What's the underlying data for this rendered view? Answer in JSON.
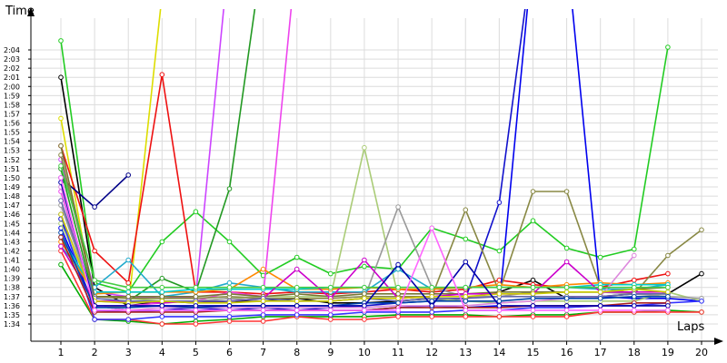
{
  "chart_data": {
    "type": "line",
    "xlabel": "Laps",
    "ylabel": "Time",
    "x": [
      1,
      2,
      3,
      4,
      5,
      6,
      7,
      8,
      9,
      10,
      11,
      12,
      13,
      14,
      15,
      16,
      17,
      18,
      19,
      20
    ],
    "xlim": [
      1,
      20
    ],
    "ylim": [
      93,
      125
    ],
    "yticks": [
      "1:34",
      "1:35",
      "1:36",
      "1:37",
      "1:38",
      "1:39",
      "1:40",
      "1:41",
      "1:42",
      "1:43",
      "1:44",
      "1:45",
      "1:46",
      "1:47",
      "1:48",
      "1:49",
      "1:50",
      "1:51",
      "1:52",
      "1:53",
      "1:54",
      "1:55",
      "1:56",
      "1:57",
      "1:58",
      "1:59",
      "2:00",
      "2:01",
      "2:02",
      "2:03",
      "2:04"
    ],
    "ytick_values": [
      94,
      95,
      96,
      97,
      98,
      99,
      100,
      101,
      102,
      103,
      104,
      105,
      106,
      107,
      108,
      109,
      110,
      111,
      112,
      113,
      114,
      115,
      116,
      117,
      118,
      119,
      120,
      121,
      122,
      123,
      124
    ],
    "grid": true,
    "series": [
      {
        "color": "#22cc22",
        "values": [
          125,
          98.5,
          97.5,
          103,
          106.3,
          103,
          99.3,
          101.3,
          99.5,
          100.3,
          100,
          104.5,
          103.3,
          102,
          105.3,
          102.3,
          101.3,
          102.2,
          124.3,
          null
        ]
      },
      {
        "color": "#000000",
        "values": [
          121,
          98,
          96,
          96.5,
          96.3,
          96.5,
          96.5,
          96.8,
          96.3,
          96.3,
          96.5,
          96.8,
          96.8,
          97.5,
          98.8,
          96.8,
          97,
          97.3,
          97.3,
          99.5
        ]
      },
      {
        "color": "#dddd00",
        "values": [
          116.5,
          96,
          95.8,
          130,
          null,
          null,
          null,
          null,
          null,
          null,
          null,
          null,
          null,
          null,
          null,
          null,
          null,
          null,
          null,
          null
        ]
      },
      {
        "color": "#ee1111",
        "values": [
          113.5,
          102,
          98.5,
          121.3,
          97.5,
          97.5,
          97.3,
          97.5,
          97.3,
          97.5,
          97.8,
          97.5,
          97.8,
          98.8,
          98.3,
          98,
          98,
          98.8,
          99.5,
          null
        ]
      },
      {
        "color": "#000088",
        "values": [
          110,
          106.8,
          110.3,
          null,
          null,
          null,
          null,
          null,
          null,
          null,
          null,
          null,
          null,
          null,
          null,
          null,
          null,
          null,
          null,
          null
        ]
      },
      {
        "color": "#cc44ff",
        "values": [
          112,
          97.5,
          97,
          96.8,
          97,
          135,
          null,
          null,
          null,
          null,
          null,
          null,
          null,
          null,
          null,
          null,
          null,
          null,
          null,
          null
        ]
      },
      {
        "color": "#229922",
        "values": [
          111,
          96.5,
          96.5,
          99,
          97.5,
          108.8,
          135,
          null,
          null,
          null,
          null,
          null,
          null,
          null,
          null,
          null,
          null,
          null,
          null,
          null
        ]
      },
      {
        "color": "#ee44ee",
        "values": [
          108.5,
          96,
          96,
          96.3,
          96.5,
          97.5,
          97,
          135,
          null,
          null,
          null,
          null,
          null,
          null,
          null,
          null,
          null,
          null,
          null,
          null
        ]
      },
      {
        "color": "#1111cc",
        "values": [
          105.5,
          95.5,
          95.3,
          95.5,
          95.8,
          95.5,
          95.8,
          95.5,
          95.8,
          96,
          96.3,
          96.5,
          96.8,
          107.3,
          135,
          null,
          null,
          null,
          null,
          null
        ]
      },
      {
        "color": "#0000ee",
        "values": [
          104.5,
          96,
          95.5,
          95.5,
          95.5,
          95.5,
          95.5,
          95.5,
          95.5,
          95.5,
          95.8,
          96,
          95.8,
          96,
          135,
          135,
          97,
          96.8,
          96.8,
          96.5
        ]
      },
      {
        "color": "#aacc77",
        "values": [
          105,
          97,
          96.8,
          96.5,
          96.5,
          96.8,
          97,
          97,
          97,
          113.3,
          97,
          96.8,
          96.5,
          96.3,
          96.5,
          96.5,
          96.5,
          96.5,
          97.5,
          96.5
        ]
      },
      {
        "color": "#999999",
        "values": [
          107,
          96.5,
          96.3,
          96.5,
          96.5,
          96.8,
          96.5,
          96.5,
          96.5,
          96.8,
          106.8,
          98,
          97,
          97,
          97.5,
          97.5,
          97.5,
          97.3,
          97,
          96.8
        ]
      },
      {
        "color": "#888844",
        "values": [
          112.5,
          97,
          96.8,
          96.8,
          96.8,
          97,
          96.8,
          96.8,
          96.8,
          97,
          97,
          97,
          106.5,
          97.5,
          108.5,
          108.5,
          98,
          97.3,
          101.5,
          104.3
        ]
      },
      {
        "color": "#22aacc",
        "values": [
          102.5,
          98,
          101,
          97,
          97.5,
          98.5,
          98,
          97.5,
          97.5,
          97.5,
          100,
          97.8,
          98,
          98,
          98,
          98,
          97.8,
          97.8,
          98.3,
          null
        ]
      },
      {
        "color": "#00aa00",
        "values": [
          100.5,
          94.5,
          94.3,
          94,
          94.3,
          94.5,
          94.8,
          94.8,
          94.8,
          94.8,
          95,
          95,
          95,
          94.8,
          95,
          95,
          95.3,
          95.3,
          95.5,
          95.3
        ]
      },
      {
        "color": "#ff3333",
        "values": [
          102,
          94.5,
          94.5,
          94,
          94,
          94.3,
          94.3,
          94.8,
          94.5,
          94.5,
          94.8,
          94.8,
          94.8,
          94.8,
          94.8,
          94.8,
          95.3,
          95.3,
          95.3,
          95.3
        ]
      },
      {
        "color": "#3333ff",
        "values": [
          106,
          94.5,
          94.5,
          94.8,
          94.8,
          94.8,
          95,
          95,
          95,
          95.3,
          95.3,
          95.3,
          95.5,
          95.5,
          95.8,
          95.8,
          96,
          96,
          96.3,
          96.5
        ]
      },
      {
        "color": "#ff8800",
        "values": [
          103,
          97.3,
          97.5,
          97.5,
          97.5,
          97.8,
          100,
          97.8,
          97.8,
          98,
          97.8,
          97.8,
          98,
          98.3,
          98,
          98.3,
          98.5,
          98.3,
          98.5,
          null
        ]
      },
      {
        "color": "#00cccc",
        "values": [
          103.5,
          97.5,
          97.5,
          97.5,
          97.8,
          97.8,
          97.8,
          97.8,
          98,
          98,
          98,
          98,
          98,
          98,
          98,
          98,
          98.3,
          98.3,
          98.3,
          null
        ]
      },
      {
        "color": "#dd88dd",
        "values": [
          109,
          96,
          95.5,
          95.8,
          95.8,
          95.8,
          95.8,
          95.8,
          95.8,
          95.8,
          96,
          96,
          96,
          96.3,
          96.5,
          96.8,
          97,
          101.5,
          null,
          null
        ]
      },
      {
        "color": "#777733",
        "values": [
          113.5,
          97,
          97,
          97,
          97,
          97.3,
          97,
          97.3,
          97,
          97.3,
          97.3,
          97.3,
          97.3,
          97.5,
          97.5,
          97.5,
          97.5,
          97.8,
          98,
          null
        ]
      },
      {
        "color": "#cc00cc",
        "values": [
          102.5,
          96.5,
          96.5,
          96.3,
          96.5,
          96.5,
          96.8,
          100,
          96.8,
          101,
          96.8,
          97,
          97.3,
          97.3,
          97.3,
          100.8,
          97.5,
          97.5,
          97.5,
          null
        ]
      },
      {
        "color": "#6666aa",
        "values": [
          107.5,
          96.8,
          96.5,
          96.5,
          96.5,
          96.5,
          96.8,
          96.5,
          96.5,
          96.8,
          96.5,
          96.8,
          96.8,
          97,
          97,
          97,
          97,
          97.3,
          97.3,
          null
        ]
      },
      {
        "color": "#cccc00",
        "values": [
          106,
          96.5,
          96.3,
          96.5,
          96.3,
          96.3,
          96.5,
          96.5,
          96.5,
          96.8,
          96.8,
          97,
          97,
          97.3,
          97.3,
          97.5,
          97.5,
          97.8,
          97.5,
          null
        ]
      },
      {
        "color": "#0044aa",
        "values": [
          104,
          95.8,
          95.8,
          96,
          95.8,
          96,
          96,
          96,
          96,
          96.3,
          96.3,
          96.5,
          96.5,
          96.5,
          96.8,
          96.8,
          96.8,
          97,
          97,
          null
        ]
      },
      {
        "color": "#aa2222",
        "values": [
          103.5,
          95.3,
          95.3,
          95.3,
          95.3,
          95.5,
          95.5,
          95.5,
          95.5,
          95.5,
          95.8,
          95.8,
          95.8,
          95.8,
          96,
          96,
          96,
          96.3,
          96.3,
          null
        ]
      },
      {
        "color": "#44cc44",
        "values": [
          111.3,
          98.8,
          98,
          98,
          98,
          98,
          98,
          98,
          98,
          98,
          98,
          98,
          98,
          98,
          98,
          98,
          98,
          98,
          98,
          null
        ]
      },
      {
        "color": "#0000aa",
        "values": [
          109.5,
          96,
          96,
          96,
          96,
          96,
          96,
          96,
          96,
          96,
          100.5,
          96,
          100.8,
          96,
          96,
          96,
          96,
          96,
          96,
          null
        ]
      },
      {
        "color": "#ff66ff",
        "values": [
          110,
          95.5,
          95.5,
          95.5,
          95.5,
          95.5,
          95.5,
          95.5,
          95.5,
          95.5,
          95.5,
          104.5,
          95.5,
          95.5,
          95.5,
          95.5,
          95.5,
          95.5,
          95.5,
          null
        ]
      }
    ]
  }
}
